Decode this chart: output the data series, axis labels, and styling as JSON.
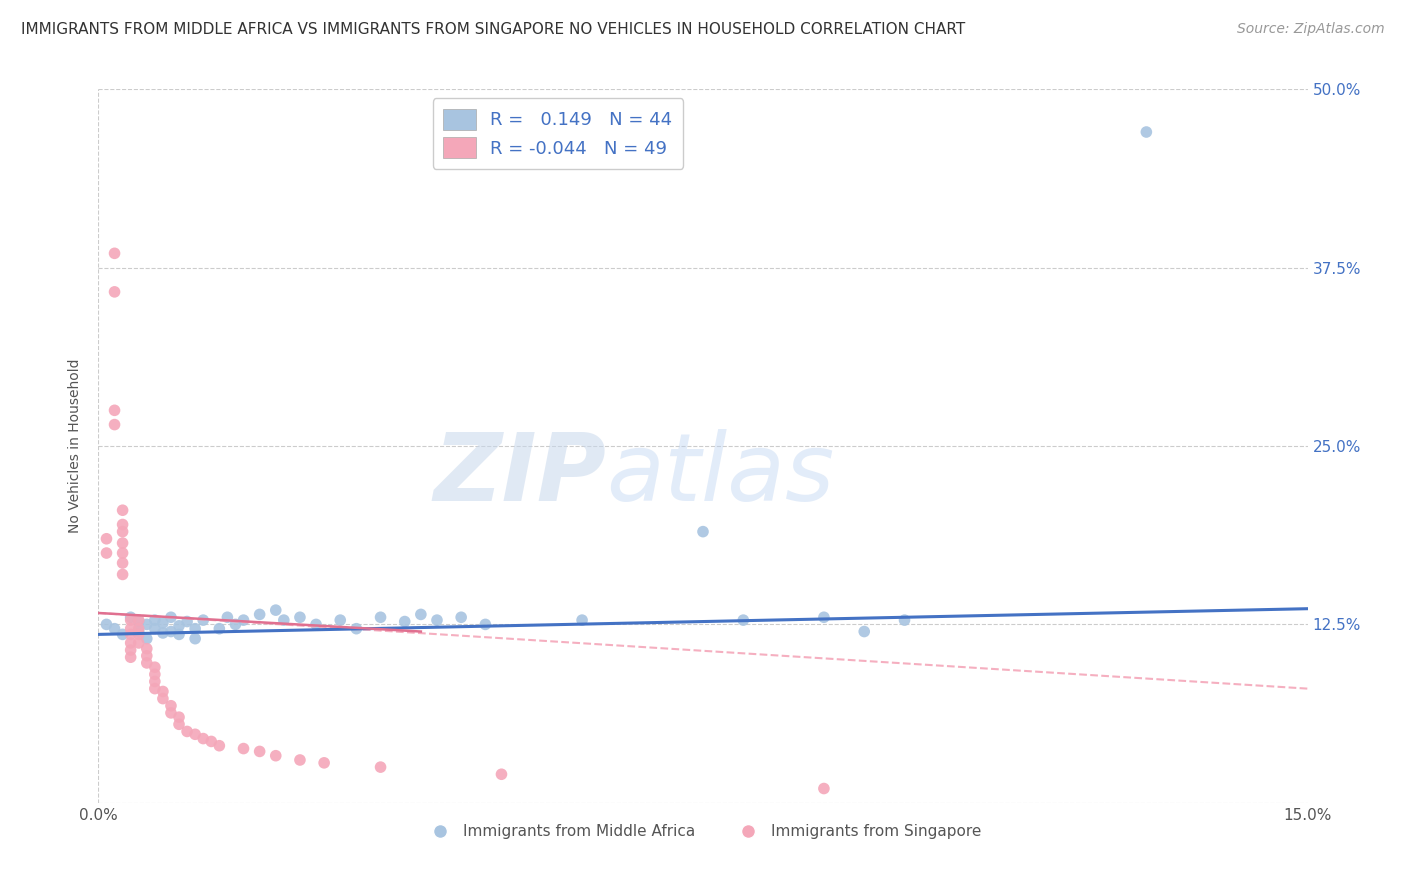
{
  "title": "IMMIGRANTS FROM MIDDLE AFRICA VS IMMIGRANTS FROM SINGAPORE NO VEHICLES IN HOUSEHOLD CORRELATION CHART",
  "source": "Source: ZipAtlas.com",
  "ylabel": "No Vehicles in Household",
  "xlabel_legend1": "Immigrants from Middle Africa",
  "xlabel_legend2": "Immigrants from Singapore",
  "r1": 0.149,
  "n1": 44,
  "r2": -0.044,
  "n2": 49,
  "xlim": [
    0.0,
    0.15
  ],
  "ylim": [
    0.0,
    0.5
  ],
  "color_blue": "#a8c4e0",
  "color_pink": "#f4a7b9",
  "line_blue": "#4472c4",
  "line_pink_solid": "#e07090",
  "line_pink_dash": "#f4a7b9",
  "blue_scatter": [
    [
      0.001,
      0.125
    ],
    [
      0.002,
      0.122
    ],
    [
      0.003,
      0.118
    ],
    [
      0.004,
      0.13
    ],
    [
      0.005,
      0.127
    ],
    [
      0.005,
      0.12
    ],
    [
      0.006,
      0.125
    ],
    [
      0.006,
      0.115
    ],
    [
      0.007,
      0.128
    ],
    [
      0.007,
      0.122
    ],
    [
      0.008,
      0.119
    ],
    [
      0.008,
      0.126
    ],
    [
      0.009,
      0.13
    ],
    [
      0.009,
      0.12
    ],
    [
      0.01,
      0.124
    ],
    [
      0.01,
      0.118
    ],
    [
      0.011,
      0.127
    ],
    [
      0.012,
      0.122
    ],
    [
      0.012,
      0.115
    ],
    [
      0.013,
      0.128
    ],
    [
      0.015,
      0.122
    ],
    [
      0.016,
      0.13
    ],
    [
      0.017,
      0.125
    ],
    [
      0.018,
      0.128
    ],
    [
      0.02,
      0.132
    ],
    [
      0.022,
      0.135
    ],
    [
      0.023,
      0.128
    ],
    [
      0.025,
      0.13
    ],
    [
      0.027,
      0.125
    ],
    [
      0.03,
      0.128
    ],
    [
      0.032,
      0.122
    ],
    [
      0.035,
      0.13
    ],
    [
      0.038,
      0.127
    ],
    [
      0.04,
      0.132
    ],
    [
      0.042,
      0.128
    ],
    [
      0.045,
      0.13
    ],
    [
      0.048,
      0.125
    ],
    [
      0.06,
      0.128
    ],
    [
      0.075,
      0.19
    ],
    [
      0.08,
      0.128
    ],
    [
      0.09,
      0.13
    ],
    [
      0.095,
      0.12
    ],
    [
      0.1,
      0.128
    ],
    [
      0.13,
      0.47
    ]
  ],
  "pink_scatter": [
    [
      0.001,
      0.185
    ],
    [
      0.001,
      0.175
    ],
    [
      0.002,
      0.385
    ],
    [
      0.002,
      0.358
    ],
    [
      0.002,
      0.275
    ],
    [
      0.002,
      0.265
    ],
    [
      0.003,
      0.205
    ],
    [
      0.003,
      0.195
    ],
    [
      0.003,
      0.19
    ],
    [
      0.003,
      0.182
    ],
    [
      0.003,
      0.175
    ],
    [
      0.003,
      0.168
    ],
    [
      0.003,
      0.16
    ],
    [
      0.004,
      0.128
    ],
    [
      0.004,
      0.122
    ],
    [
      0.004,
      0.118
    ],
    [
      0.004,
      0.112
    ],
    [
      0.004,
      0.107
    ],
    [
      0.004,
      0.102
    ],
    [
      0.005,
      0.128
    ],
    [
      0.005,
      0.122
    ],
    [
      0.005,
      0.118
    ],
    [
      0.005,
      0.112
    ],
    [
      0.006,
      0.108
    ],
    [
      0.006,
      0.103
    ],
    [
      0.006,
      0.098
    ],
    [
      0.007,
      0.095
    ],
    [
      0.007,
      0.09
    ],
    [
      0.007,
      0.085
    ],
    [
      0.007,
      0.08
    ],
    [
      0.008,
      0.078
    ],
    [
      0.008,
      0.073
    ],
    [
      0.009,
      0.068
    ],
    [
      0.009,
      0.063
    ],
    [
      0.01,
      0.06
    ],
    [
      0.01,
      0.055
    ],
    [
      0.011,
      0.05
    ],
    [
      0.012,
      0.048
    ],
    [
      0.013,
      0.045
    ],
    [
      0.014,
      0.043
    ],
    [
      0.015,
      0.04
    ],
    [
      0.018,
      0.038
    ],
    [
      0.02,
      0.036
    ],
    [
      0.022,
      0.033
    ],
    [
      0.025,
      0.03
    ],
    [
      0.028,
      0.028
    ],
    [
      0.035,
      0.025
    ],
    [
      0.05,
      0.02
    ],
    [
      0.09,
      0.01
    ]
  ]
}
